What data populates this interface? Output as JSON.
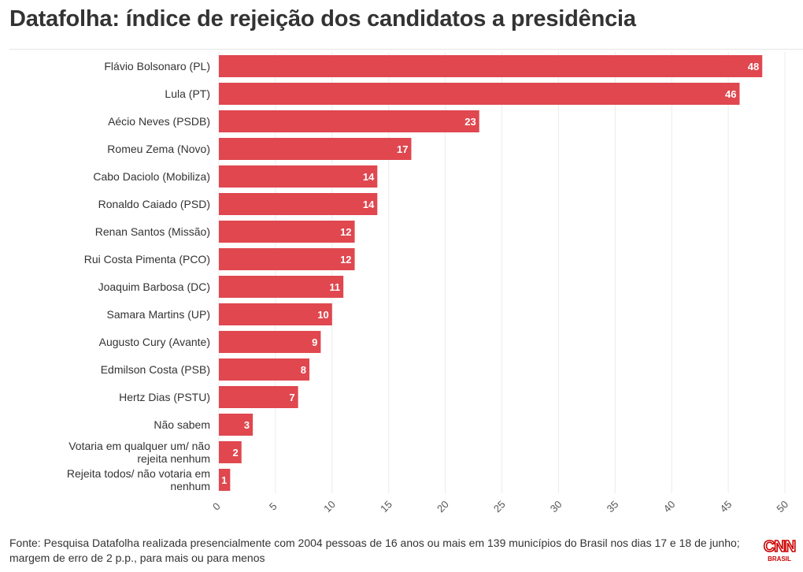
{
  "title": "Datafolha: índice de rejeição dos candidatos a presidência",
  "footer": {
    "source": "Fonte: Pesquisa Datafolha realizada presencialmente com 2004 pessoas de 16 anos ou mais em 139 municípios do Brasil nos dias 17 e 18 de junho; margem de erro de 2 p.p., para mais ou para menos"
  },
  "logo": {
    "brand": "CNN",
    "sub": "BRASIL",
    "color": "#cc0000"
  },
  "chart_data": {
    "type": "bar",
    "orientation": "horizontal",
    "categories": [
      "Flávio Bolsonaro (PL)",
      "Lula (PT)",
      "Aécio Neves (PSDB)",
      "Romeu Zema (Novo)",
      "Cabo Daciolo (Mobiliza)",
      "Ronaldo Caiado (PSD)",
      "Renan Santos (Missão)",
      "Rui Costa Pimenta (PCO)",
      "Joaquim Barbosa (DC)",
      "Samara Martins (UP)",
      "Augusto Cury (Avante)",
      "Edmilson Costa (PSB)",
      "Hertz Dias (PSTU)",
      "Não sabem",
      "Votaria em qualquer um/ não rejeita nenhum",
      "Rejeita todos/ não votaria em nenhum"
    ],
    "values": [
      48,
      46,
      23,
      17,
      14,
      14,
      12,
      12,
      11,
      10,
      9,
      8,
      7,
      3,
      2,
      1
    ],
    "xlim": [
      0,
      50
    ],
    "xticks": [
      0,
      5,
      10,
      15,
      20,
      25,
      30,
      35,
      40,
      45,
      50
    ],
    "grid": true,
    "data_labels": true,
    "bar_color": "#e0474f"
  }
}
